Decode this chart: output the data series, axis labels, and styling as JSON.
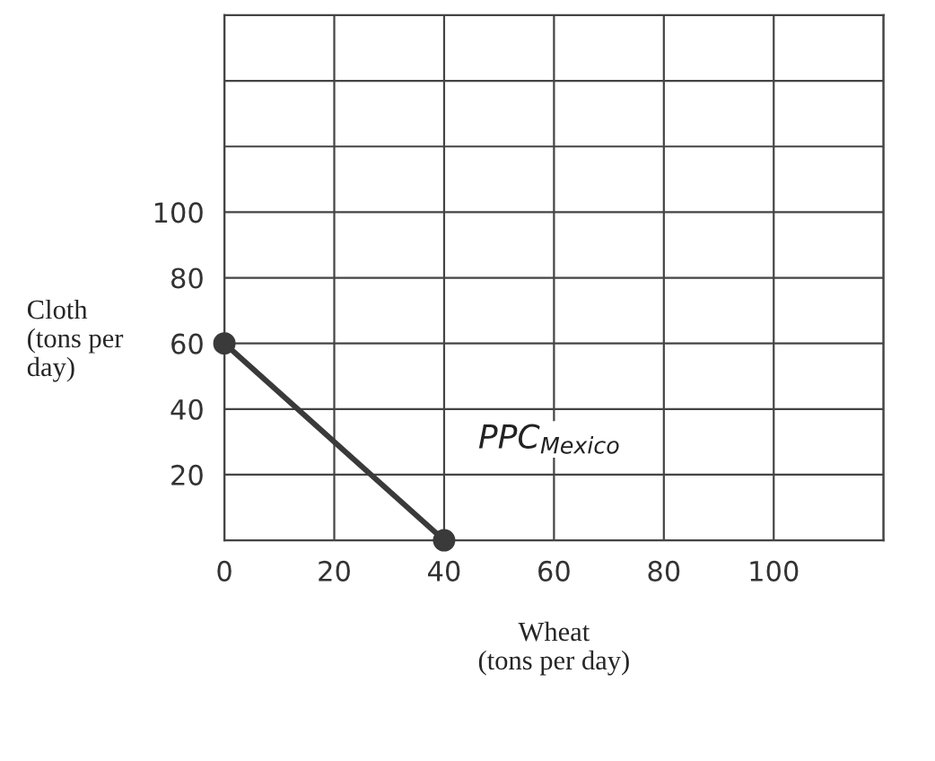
{
  "chart_data": {
    "type": "line",
    "xlabel": "Wheat\n(tons per day)",
    "ylabel": "Cloth\n(tons per\nday)",
    "series": [
      {
        "x": [
          0,
          40
        ],
        "values": [
          60,
          0
        ],
        "color": "#3a3a3a"
      }
    ],
    "xlim": [
      0,
      120
    ],
    "ylim": [
      0,
      160
    ],
    "xticks": [
      0,
      20,
      40,
      60,
      80,
      100,
      {
        "value": 120,
        "label": null
      }
    ],
    "yticks": [
      20,
      40,
      60,
      80,
      100,
      {
        "value": 120,
        "label": null
      },
      {
        "value": 140,
        "label": null
      }
    ],
    "annotations": [
      "PPC$_{Mexico}$"
    ],
    "grid": true,
    "marker": "circle",
    "line_style": "solid",
    "legend": false
  }
}
